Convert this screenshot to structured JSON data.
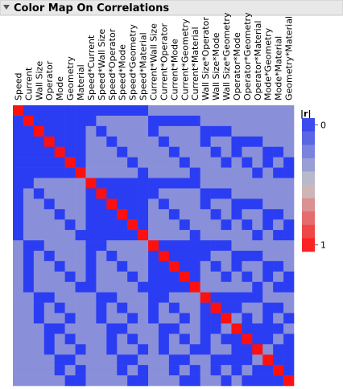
{
  "chart_data": {
    "type": "heatmap",
    "title": "Color Map On Correlations",
    "categories": [
      "Speed",
      "Current",
      "Wall Size",
      "Operator",
      "Mode",
      "Geometry",
      "Material",
      "Speed*Current",
      "Speed*Wall Size",
      "Speed*Operator",
      "Speed*Mode",
      "Speed*Geometry",
      "Speed*Material",
      "Current*Wall Size",
      "Current*Operator",
      "Current*Mode",
      "Current*Geometry",
      "Current*Material",
      "Wall Size*Operator",
      "Wall Size*Mode",
      "Wall Size*Geometry",
      "Operator*Mode",
      "Operator*Geometry",
      "Operator*Material",
      "Mode*Geometry",
      "Mode*Material",
      "Geometry*Material"
    ],
    "values": [
      [
        1,
        0,
        0,
        0,
        0,
        0,
        0,
        0,
        0,
        0,
        0,
        0,
        0,
        0.3,
        0.3,
        0.3,
        0.3,
        0.3,
        0.3,
        0.3,
        0.3,
        0.3,
        0.3,
        0.3,
        0.3,
        0.3,
        0.3
      ],
      [
        0,
        1,
        0,
        0,
        0,
        0,
        0,
        0,
        0.3,
        0.3,
        0.3,
        0.3,
        0.3,
        0,
        0,
        0,
        0,
        0,
        0.3,
        0.3,
        0.3,
        0.3,
        0.3,
        0.3,
        0.3,
        0.3,
        0.3
      ],
      [
        0,
        0,
        1,
        0,
        0,
        0,
        0,
        0.3,
        0,
        0.3,
        0.3,
        0.3,
        0.3,
        0,
        0.3,
        0.3,
        0.3,
        0.3,
        0,
        0,
        0,
        0.3,
        0.3,
        0.3,
        0.3,
        0.3,
        0.3
      ],
      [
        0,
        0,
        0,
        1,
        0,
        0,
        0,
        0.3,
        0.3,
        0,
        0.3,
        0.3,
        0.3,
        0.3,
        0,
        0.3,
        0.3,
        0.3,
        0,
        0.3,
        0.3,
        0,
        0,
        0,
        0.3,
        0.3,
        0.3
      ],
      [
        0,
        0,
        0,
        0,
        1,
        0,
        0,
        0.3,
        0.3,
        0.3,
        0,
        0.3,
        0.3,
        0.3,
        0.3,
        0,
        0.3,
        0.3,
        0.3,
        0,
        0.3,
        0,
        0.3,
        0.3,
        0,
        0,
        0.3
      ],
      [
        0,
        0,
        0,
        0,
        0,
        1,
        0,
        0.3,
        0.3,
        0.3,
        0.3,
        0,
        0.3,
        0.3,
        0.3,
        0.3,
        0,
        0.3,
        0.3,
        0.3,
        0,
        0.3,
        0,
        0.3,
        0,
        0.3,
        0
      ],
      [
        0,
        0,
        0,
        0,
        0,
        0,
        1,
        0.3,
        0.3,
        0.3,
        0.3,
        0.3,
        0,
        0.3,
        0.3,
        0.3,
        0.3,
        0,
        0.3,
        0.3,
        0.3,
        0.3,
        0.3,
        0,
        0.3,
        0,
        0
      ],
      [
        0,
        0,
        0.3,
        0.3,
        0.3,
        0.3,
        0.3,
        1,
        0,
        0,
        0,
        0,
        0,
        0,
        0,
        0,
        0,
        0,
        0.3,
        0.3,
        0.3,
        0.3,
        0.3,
        0.3,
        0.3,
        0.3,
        0.3
      ],
      [
        0,
        0.3,
        0,
        0.3,
        0.3,
        0.3,
        0.3,
        0,
        1,
        0,
        0,
        0,
        0,
        0,
        0.3,
        0.3,
        0.3,
        0.3,
        0,
        0,
        0,
        0.3,
        0.3,
        0.3,
        0.3,
        0.3,
        0.3
      ],
      [
        0,
        0.3,
        0.3,
        0,
        0.3,
        0.3,
        0.3,
        0,
        0,
        1,
        0,
        0,
        0,
        0.3,
        0,
        0.3,
        0.3,
        0.3,
        0,
        0.3,
        0.3,
        0,
        0,
        0,
        0.3,
        0.3,
        0.3
      ],
      [
        0,
        0.3,
        0.3,
        0.3,
        0,
        0.3,
        0.3,
        0,
        0,
        0,
        1,
        0,
        0,
        0.3,
        0.3,
        0,
        0.3,
        0.3,
        0.3,
        0,
        0.3,
        0,
        0.3,
        0.3,
        0,
        0,
        0.3
      ],
      [
        0,
        0.3,
        0.3,
        0.3,
        0.3,
        0,
        0.3,
        0,
        0,
        0,
        0,
        1,
        0,
        0.3,
        0.3,
        0.3,
        0,
        0.3,
        0.3,
        0.3,
        0,
        0.3,
        0,
        0.3,
        0,
        0.3,
        0
      ],
      [
        0,
        0.3,
        0.3,
        0.3,
        0.3,
        0.3,
        0,
        0,
        0,
        0,
        0,
        0,
        1,
        0.3,
        0.3,
        0.3,
        0.3,
        0,
        0.3,
        0.3,
        0.3,
        0.3,
        0.3,
        0,
        0.3,
        0,
        0
      ],
      [
        0.3,
        0,
        0,
        0.3,
        0.3,
        0.3,
        0.3,
        0,
        0,
        0.3,
        0.3,
        0.3,
        0.3,
        1,
        0,
        0,
        0,
        0,
        0,
        0,
        0,
        0.3,
        0.3,
        0.3,
        0.3,
        0.3,
        0.3
      ],
      [
        0.3,
        0,
        0.3,
        0,
        0.3,
        0.3,
        0.3,
        0,
        0.3,
        0,
        0.3,
        0.3,
        0.3,
        0,
        1,
        0,
        0,
        0,
        0,
        0.3,
        0.3,
        0,
        0,
        0,
        0.3,
        0.3,
        0.3
      ],
      [
        0.3,
        0,
        0.3,
        0.3,
        0,
        0.3,
        0.3,
        0,
        0.3,
        0.3,
        0,
        0.3,
        0.3,
        0,
        0,
        1,
        0,
        0,
        0.3,
        0,
        0.3,
        0,
        0.3,
        0.3,
        0,
        0,
        0.3
      ],
      [
        0.3,
        0,
        0.3,
        0.3,
        0.3,
        0,
        0.3,
        0,
        0.3,
        0.3,
        0.3,
        0,
        0.3,
        0,
        0,
        0,
        1,
        0,
        0.3,
        0.3,
        0,
        0.3,
        0,
        0.3,
        0,
        0.3,
        0
      ],
      [
        0.3,
        0,
        0.3,
        0.3,
        0.3,
        0.3,
        0,
        0,
        0.3,
        0.3,
        0.3,
        0.3,
        0,
        0,
        0,
        0,
        0,
        1,
        0.3,
        0.3,
        0.3,
        0.3,
        0.3,
        0,
        0.3,
        0,
        0
      ],
      [
        0.3,
        0.3,
        0,
        0,
        0.3,
        0.3,
        0.3,
        0.3,
        0,
        0,
        0.3,
        0.3,
        0.3,
        0,
        0,
        0.3,
        0.3,
        0.3,
        1,
        0,
        0,
        0,
        0,
        0,
        0.3,
        0.3,
        0.3
      ],
      [
        0.3,
        0.3,
        0,
        0.3,
        0,
        0.3,
        0.3,
        0.3,
        0,
        0.3,
        0,
        0.3,
        0.3,
        0,
        0.3,
        0,
        0.3,
        0.3,
        0,
        1,
        0,
        0,
        0.3,
        0.3,
        0,
        0,
        0.3
      ],
      [
        0.3,
        0.3,
        0,
        0.3,
        0.3,
        0,
        0.3,
        0.3,
        0,
        0.3,
        0.3,
        0,
        0.3,
        0,
        0.3,
        0.3,
        0,
        0.3,
        0,
        0,
        1,
        0.3,
        0,
        0.3,
        0,
        0.3,
        0
      ],
      [
        0.3,
        0.3,
        0.3,
        0,
        0,
        0.3,
        0.3,
        0.3,
        0.3,
        0,
        0,
        0.3,
        0.3,
        0.3,
        0,
        0,
        0.3,
        0.3,
        0,
        0,
        0.3,
        1,
        0,
        0,
        0,
        0,
        0.3
      ],
      [
        0.3,
        0.3,
        0.3,
        0,
        0.3,
        0,
        0.3,
        0.3,
        0.3,
        0,
        0.3,
        0,
        0.3,
        0.3,
        0,
        0.3,
        0,
        0.3,
        0,
        0.3,
        0,
        0,
        1,
        0,
        0,
        0.3,
        0
      ],
      [
        0.3,
        0.3,
        0.3,
        0,
        0.3,
        0.3,
        0,
        0.3,
        0.3,
        0,
        0.3,
        0.3,
        0,
        0.3,
        0,
        0.3,
        0.3,
        0,
        0,
        0.3,
        0.3,
        0,
        0,
        1,
        0.3,
        0,
        0
      ],
      [
        0.3,
        0.3,
        0.3,
        0.3,
        0,
        0,
        0.3,
        0.3,
        0.3,
        0.3,
        0,
        0,
        0.3,
        0.3,
        0.3,
        0,
        0,
        0.3,
        0.3,
        0,
        0,
        0,
        0,
        0.3,
        1,
        0,
        0
      ],
      [
        0.3,
        0.3,
        0.3,
        0.3,
        0,
        0.3,
        0,
        0.3,
        0.3,
        0.3,
        0,
        0.3,
        0,
        0.3,
        0.3,
        0,
        0.3,
        0,
        0.3,
        0,
        0.3,
        0,
        0.3,
        0,
        0,
        1,
        0
      ],
      [
        0.3,
        0.3,
        0.3,
        0.3,
        0.3,
        0,
        0,
        0.3,
        0.3,
        0.3,
        0.3,
        0,
        0,
        0.3,
        0.3,
        0.3,
        0,
        0,
        0.3,
        0.3,
        0,
        0.3,
        0,
        0,
        0,
        0,
        1
      ]
    ],
    "colorbar": {
      "title": "|r|",
      "lim": [
        0,
        1
      ],
      "ticks": [
        0,
        1
      ]
    },
    "colors": {
      "low": "#2b3df2",
      "mid": "#c8c8c8",
      "high": "#ff1010"
    }
  }
}
